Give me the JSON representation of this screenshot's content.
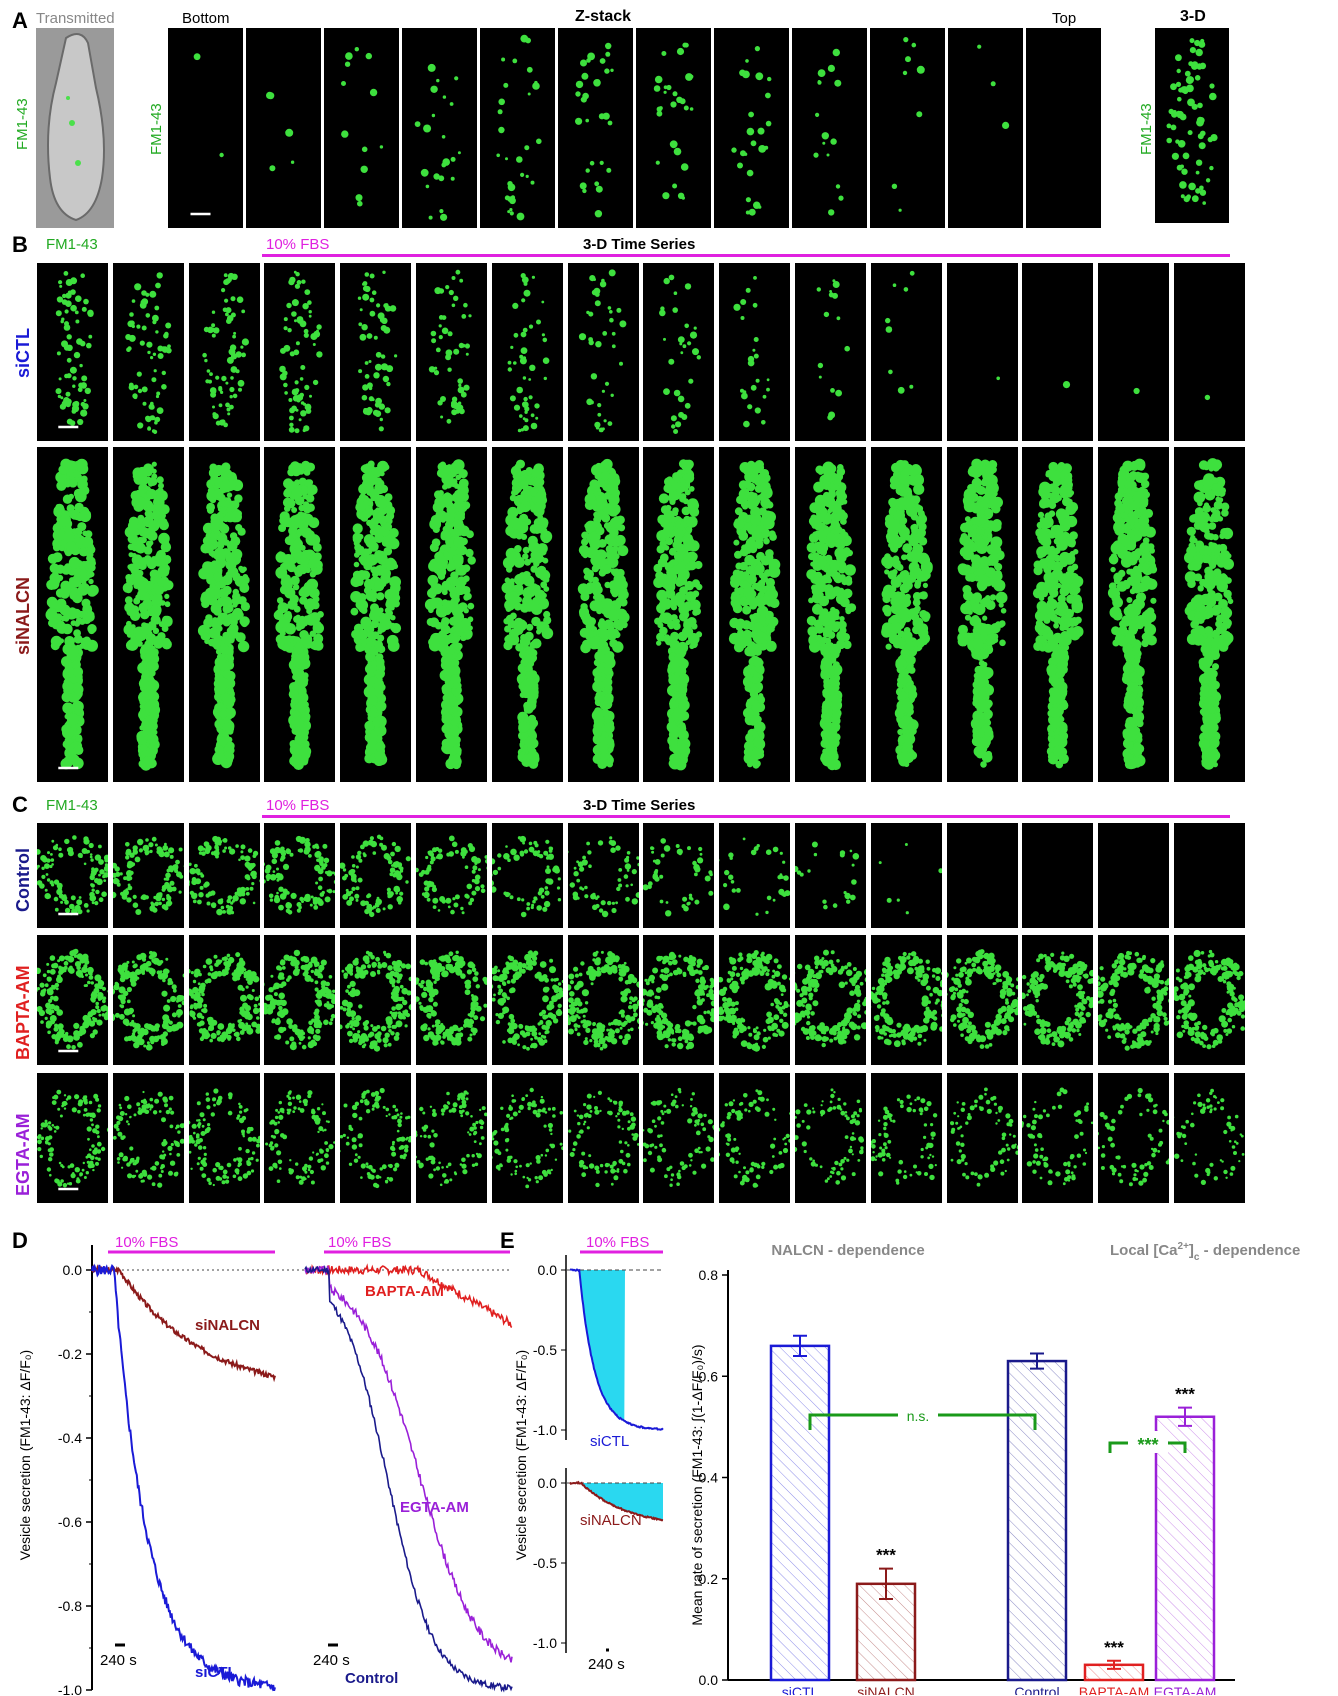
{
  "panels": {
    "A": {
      "letter": "A",
      "transmitted_label": "Transmitted",
      "dye_label": "FM1-43",
      "bottom_label": "Bottom",
      "zstack_label": "Z-stack",
      "top_label": "Top",
      "threed_label": "3-D",
      "zstack_frames": 12
    },
    "B": {
      "letter": "B",
      "dye_label": "FM1-43",
      "treatment_label": "10% FBS",
      "series_label": "3-D Time Series",
      "rows": [
        {
          "label": "siCTL",
          "color": "#1a1ad6"
        },
        {
          "label": "siNALCN",
          "color": "#8b1a1a"
        }
      ],
      "frames": 16
    },
    "C": {
      "letter": "C",
      "dye_label": "FM1-43",
      "treatment_label": "10% FBS",
      "series_label": "3-D Time Series",
      "rows": [
        {
          "label": "Control",
          "color": "#1a1a8b"
        },
        {
          "label": "BAPTA-AM",
          "color": "#e02020"
        },
        {
          "label": "EGTA-AM",
          "color": "#9a20d8"
        }
      ],
      "frames": 16
    },
    "D": {
      "letter": "D",
      "ylabel": "Vesicle secretion (FM1-43: ΔF/F₀)",
      "treatment_label": "10% FBS",
      "scale_label": "240 s",
      "yticks": [
        "0.0",
        "-0.2",
        "-0.4",
        "-0.6",
        "-0.8",
        "-1.0"
      ],
      "left_traces": [
        {
          "label": "siNALCN",
          "color": "#8b1a1a"
        },
        {
          "label": "siCTL",
          "color": "#1a1ad6"
        }
      ],
      "right_traces": [
        {
          "label": "BAPTA-AM",
          "color": "#e02020"
        },
        {
          "label": "EGTA-AM",
          "color": "#9a20d8"
        },
        {
          "label": "Control",
          "color": "#1a1a8b"
        }
      ]
    },
    "E": {
      "letter": "E",
      "ylabel": "Vesicle secretion (FM1-43: ΔF/F₀)",
      "treatment_label": "10% FBS",
      "scale_label": "240 s",
      "top_yticks": [
        "0.0",
        "-0.5",
        "-1.0"
      ],
      "bottom_yticks": [
        "0.0",
        "-0.5",
        "-1.0"
      ],
      "top_trace_label": "siCTL",
      "bottom_trace_label": "siNALCN",
      "bar_ylabel": "Mean rate of secretion (FM1-43: ∫(1-ΔF/F₀)/s)",
      "group1_title": "NALCN - dependence",
      "group2_title_prefix": "Local [Ca",
      "group2_title_sup": "2+",
      "group2_title_sub": "c",
      "group2_title_suffix": " - dependence",
      "ns_label": "n.s.",
      "sig_label": "***",
      "bar_yticks": [
        "0.0",
        "0.2",
        "0.4",
        "0.6",
        "0.8"
      ]
    }
  },
  "chart_data": {
    "type": "bar",
    "categories": [
      "siCTL",
      "siNALCN",
      "Control",
      "BAPTA-AM",
      "EGTA-AM"
    ],
    "values": [
      0.66,
      0.19,
      0.63,
      0.03,
      0.52
    ],
    "errors": [
      0.02,
      0.03,
      0.015,
      0.008,
      0.018
    ],
    "colors": [
      "#1a1ad6",
      "#8b1a1a",
      "#1a1a8b",
      "#e02020",
      "#9a20d8"
    ],
    "significance": [
      "",
      "***",
      "",
      "***",
      "***"
    ],
    "ylabel": "Mean rate of secretion (FM1-43: ∫(1-ΔF/F₀)/s)",
    "ylim": [
      0,
      0.8
    ]
  }
}
